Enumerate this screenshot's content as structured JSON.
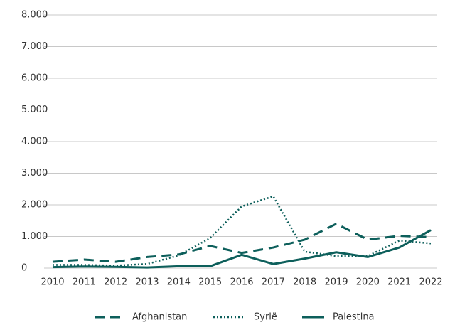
{
  "chart_data": {
    "type": "line",
    "categories": [
      "2010",
      "2011",
      "2012",
      "2013",
      "2014",
      "2015",
      "2016",
      "2017",
      "2018",
      "2019",
      "2020",
      "2021",
      "2022"
    ],
    "series": [
      {
        "name": "Afghanistan",
        "color": "#0d5f5b",
        "dash": "dashed",
        "values": [
          200,
          270,
          200,
          350,
          430,
          700,
          480,
          650,
          900,
          1400,
          900,
          1020,
          980
        ]
      },
      {
        "name": "Syrië",
        "color": "#0d5f5b",
        "dash": "dotted",
        "values": [
          100,
          100,
          80,
          130,
          400,
          950,
          1950,
          2270,
          520,
          380,
          380,
          870,
          780
        ]
      },
      {
        "name": "Palestina",
        "color": "#0d5f5b",
        "dash": "solid",
        "values": [
          30,
          50,
          40,
          20,
          60,
          60,
          420,
          130,
          300,
          500,
          350,
          650,
          1200
        ]
      }
    ],
    "ylim": [
      0,
      8000
    ],
    "yticks": [
      0,
      {
        "value": 1000,
        "label": "1.000"
      },
      {
        "value": 2000,
        "label": "2.000"
      },
      {
        "value": 3000,
        "label": "3.000"
      },
      {
        "value": 4000,
        "label": "4.000"
      },
      {
        "value": 5000,
        "label": "5.000"
      },
      {
        "value": 6000,
        "label": "6.000"
      },
      {
        "value": 7000,
        "label": "7.000"
      },
      {
        "value": 8000,
        "label": "8.000"
      }
    ],
    "grid": true,
    "legend": "bottom"
  }
}
